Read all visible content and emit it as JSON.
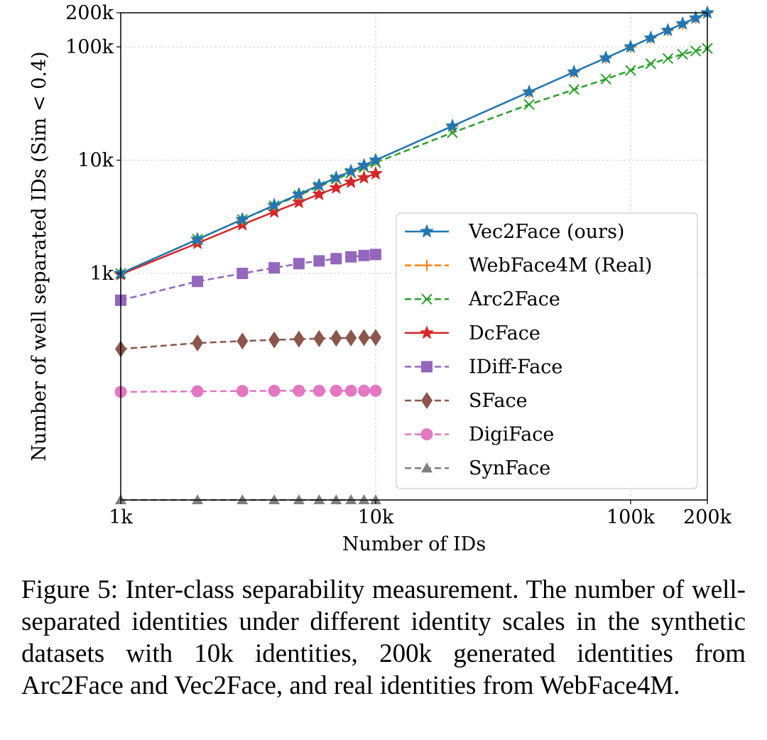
{
  "chart_data": {
    "type": "line",
    "xscale": "log",
    "yscale": "log",
    "xlabel": "Number of IDs",
    "ylabel": "Number of well separated IDs (Sim < 0.4)",
    "xlim": [
      1000,
      200000
    ],
    "ylim": [
      10,
      200000
    ],
    "grid": true,
    "legend_position": "lower-right",
    "xticks": [
      {
        "value": 1000,
        "label": "1k"
      },
      {
        "value": 10000,
        "label": "10k"
      },
      {
        "value": 100000,
        "label": "100k"
      },
      {
        "value": 200000,
        "label": "200k"
      }
    ],
    "yticks": [
      {
        "value": 1000,
        "label": "1k"
      },
      {
        "value": 10000,
        "label": "10k"
      },
      {
        "value": 100000,
        "label": "100k"
      },
      {
        "value": 200000,
        "label": "200k"
      }
    ],
    "series": [
      {
        "name": "Vec2Face (ours)",
        "color": "#1f77b4",
        "dash": "solid",
        "marker": "star",
        "x": [
          1000,
          2000,
          3000,
          4000,
          5000,
          6000,
          7000,
          8000,
          9000,
          10000,
          20000,
          40000,
          60000,
          80000,
          100000,
          120000,
          140000,
          160000,
          180000,
          200000
        ],
        "y": [
          1000,
          2000,
          3000,
          4000,
          5000,
          6000,
          7000,
          8000,
          9000,
          10000,
          20000,
          40000,
          60000,
          80000,
          100000,
          120000,
          140000,
          160000,
          180000,
          200000
        ]
      },
      {
        "name": "WebFace4M (Real)",
        "color": "#ff7f0e",
        "dash": "dashed",
        "marker": "plus",
        "x": [
          1000,
          2000,
          3000,
          4000,
          5000,
          6000,
          7000,
          8000,
          9000,
          10000,
          20000,
          40000,
          60000,
          80000,
          100000,
          120000,
          140000,
          160000,
          180000,
          200000
        ],
        "y": [
          1000,
          2000,
          3000,
          4000,
          5000,
          6000,
          7000,
          8000,
          9000,
          10000,
          20000,
          40000,
          60000,
          80000,
          100000,
          120000,
          140000,
          160000,
          180000,
          200000
        ]
      },
      {
        "name": "Arc2Face",
        "color": "#2ca02c",
        "dash": "dashed",
        "marker": "x",
        "x": [
          1000,
          2000,
          3000,
          4000,
          5000,
          6000,
          7000,
          8000,
          9000,
          10000,
          20000,
          40000,
          60000,
          80000,
          100000,
          120000,
          140000,
          160000,
          180000,
          200000
        ],
        "y": [
          1000,
          2000,
          3000,
          3950,
          4900,
          5850,
          6800,
          7700,
          8600,
          9500,
          17500,
          31000,
          42000,
          52000,
          62000,
          71000,
          79000,
          86000,
          92000,
          97000
        ]
      },
      {
        "name": "DcFace",
        "color": "#d62728",
        "dash": "solid",
        "marker": "star",
        "x": [
          1000,
          2000,
          3000,
          4000,
          5000,
          6000,
          7000,
          8000,
          9000,
          10000
        ],
        "y": [
          980,
          1850,
          2700,
          3500,
          4250,
          5000,
          5700,
          6400,
          7000,
          7600
        ]
      },
      {
        "name": "IDiff-Face",
        "color": "#9467bd",
        "dash": "dashed",
        "marker": "square",
        "x": [
          1000,
          2000,
          3000,
          4000,
          5000,
          6000,
          7000,
          8000,
          9000,
          10000
        ],
        "y": [
          580,
          850,
          1000,
          1120,
          1220,
          1290,
          1350,
          1400,
          1440,
          1470
        ]
      },
      {
        "name": "SFace",
        "color": "#8c564b",
        "dash": "dashed",
        "marker": "diamond",
        "x": [
          1000,
          2000,
          3000,
          4000,
          5000,
          6000,
          7000,
          8000,
          9000,
          10000
        ],
        "y": [
          215,
          243,
          253,
          259,
          263,
          266,
          268,
          270,
          271,
          272
        ]
      },
      {
        "name": "DigiFace",
        "color": "#e377c2",
        "dash": "dashed",
        "marker": "circle",
        "x": [
          1000,
          2000,
          3000,
          4000,
          5000,
          6000,
          7000,
          8000,
          9000,
          10000
        ],
        "y": [
          90,
          91,
          91.5,
          92,
          92,
          92,
          92,
          92,
          92,
          92
        ]
      },
      {
        "name": "SynFace",
        "color": "#7f7f7f",
        "dash": "dashed",
        "marker": "triangle",
        "x": [
          1000,
          2000,
          3000,
          4000,
          5000,
          6000,
          7000,
          8000,
          9000,
          10000
        ],
        "y": [
          10,
          10,
          10,
          10,
          10,
          10,
          10,
          10,
          10,
          10
        ]
      }
    ]
  },
  "caption": {
    "text": "Figure 5: Inter-class separability measurement. The number of well-separated identities under different identity scales in the synthetic datasets with 10k identities, 200k generated identities from Arc2Face and Vec2Face, and real identities from WebFace4M."
  }
}
